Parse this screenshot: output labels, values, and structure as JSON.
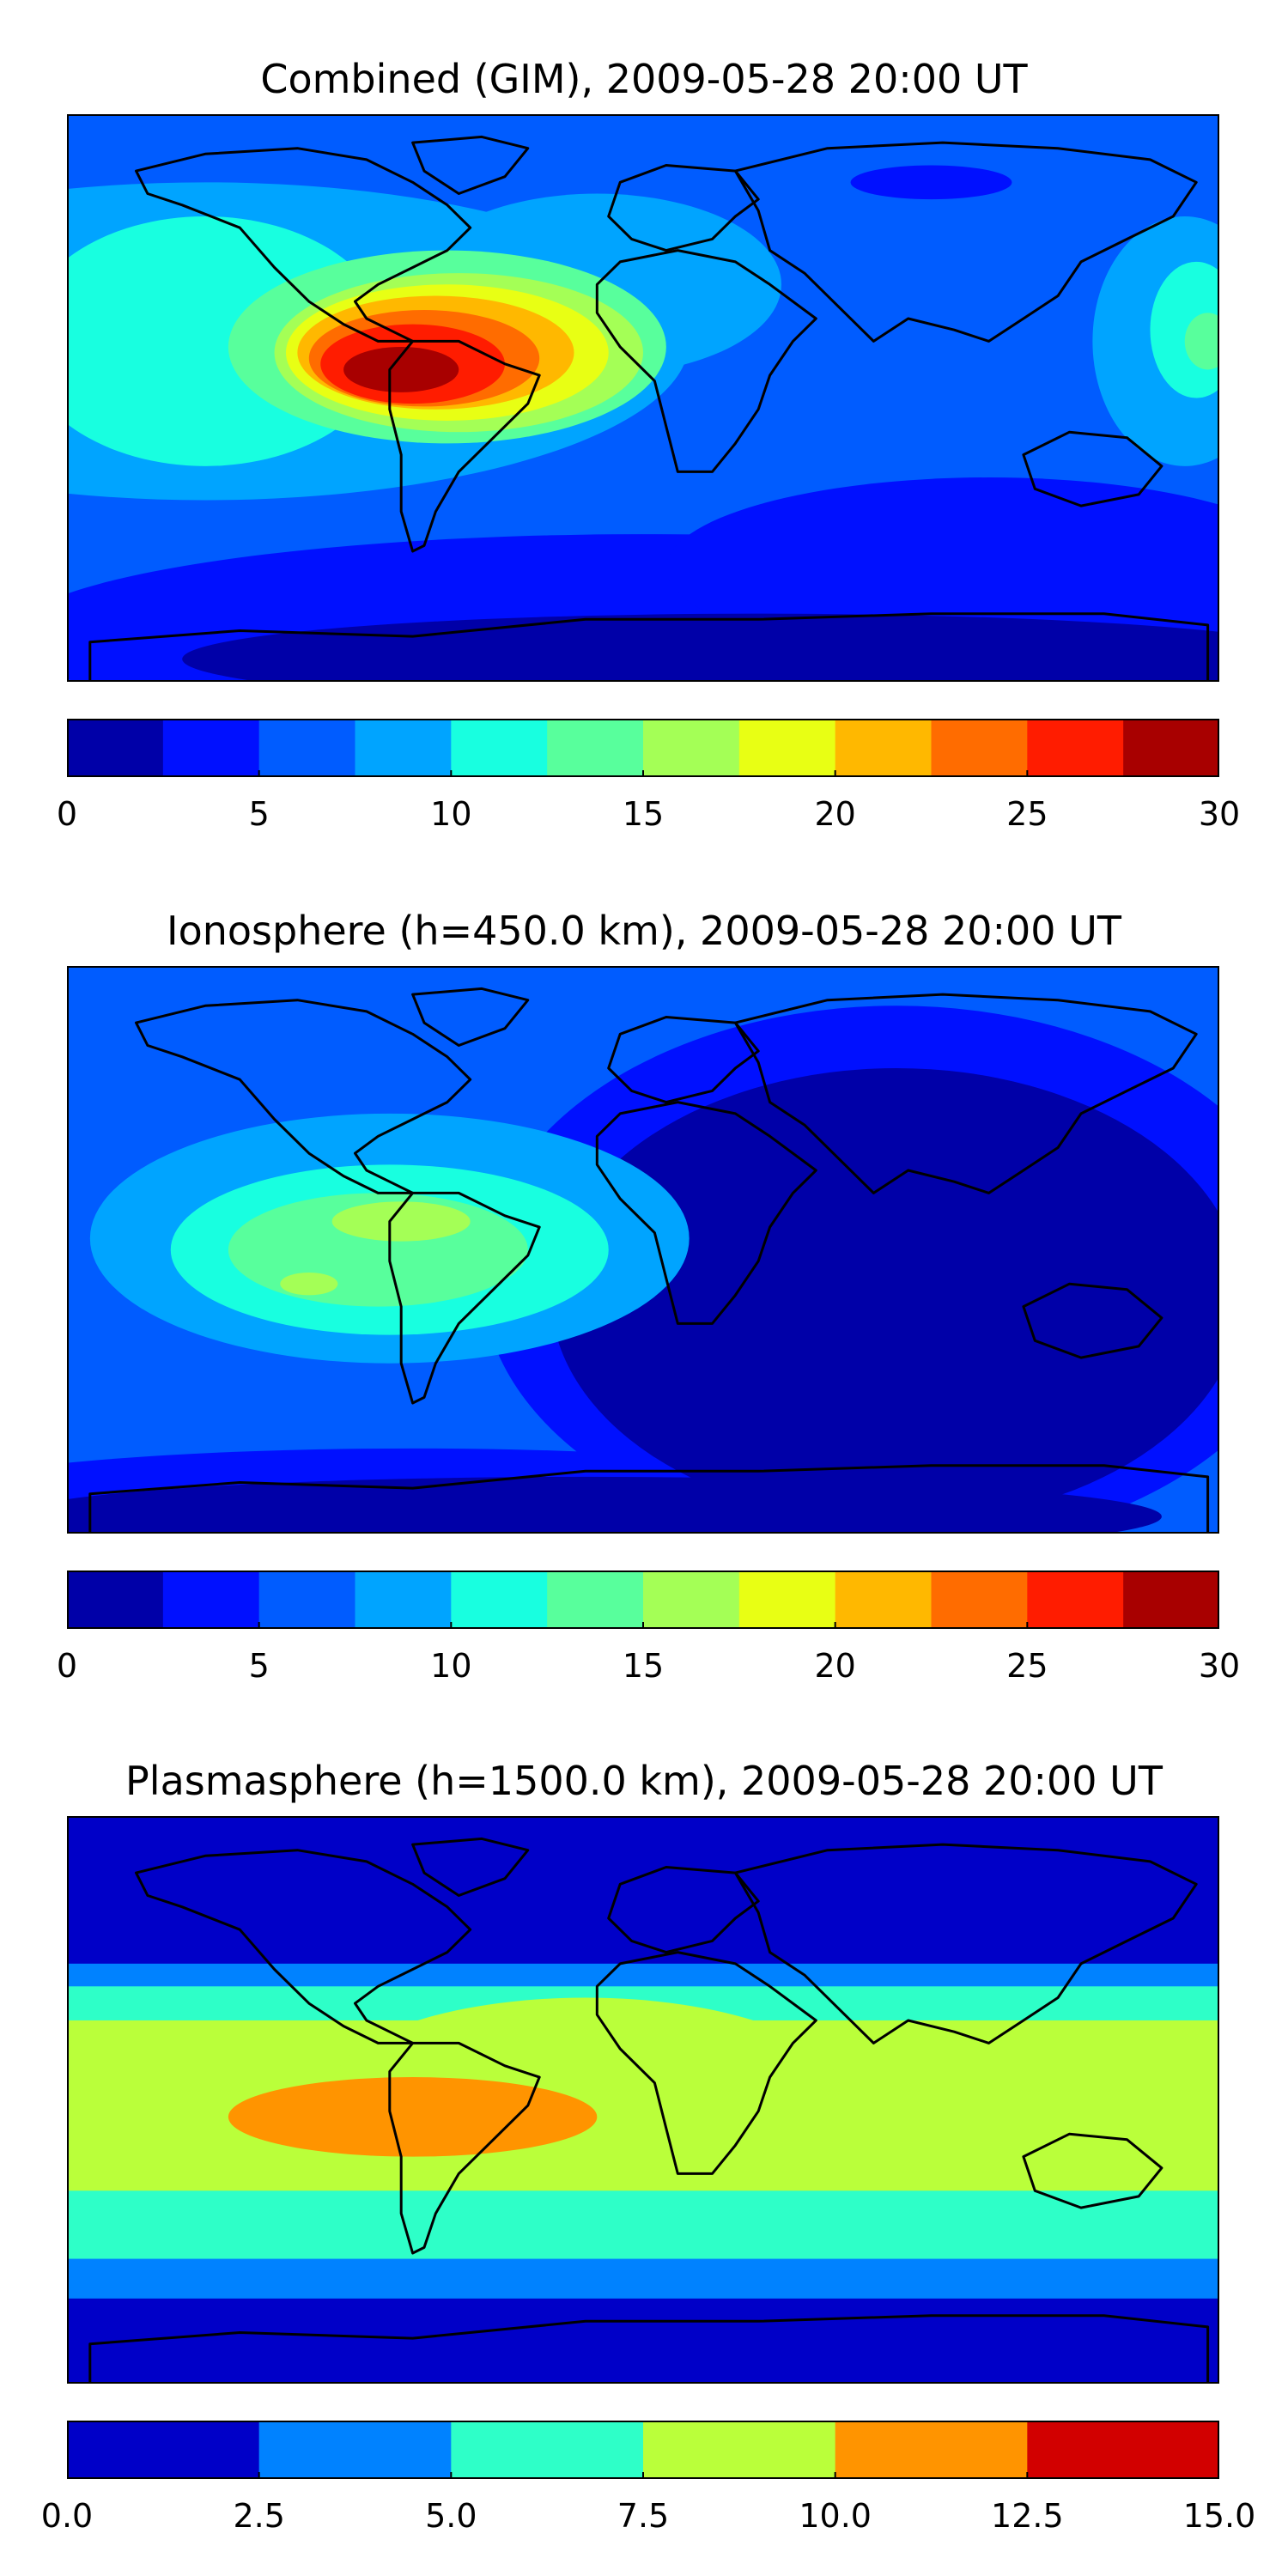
{
  "chart_data": [
    {
      "type": "heatmap",
      "title": "Combined (GIM), 2009-05-28 20:00 UT",
      "xlabel": "",
      "ylabel": "",
      "colorbar": {
        "ticks": [
          "0",
          "5",
          "10",
          "15",
          "20",
          "25",
          "30"
        ],
        "levels": [
          0,
          2.5,
          5,
          7.5,
          10,
          12.5,
          15,
          17.5,
          20,
          22.5,
          25,
          27.5,
          30
        ],
        "colors": [
          "#0000a8",
          "#0010ff",
          "#005cff",
          "#00a4ff",
          "#18ffe0",
          "#58ff9c",
          "#a4ff56",
          "#e8ff14",
          "#ffb800",
          "#ff6c00",
          "#ff1c00",
          "#a80000"
        ]
      },
      "background_level": 2,
      "regions": [
        {
          "level": 3,
          "cx": 0.12,
          "cy": 0.4,
          "rx": 0.42,
          "ry": 0.28
        },
        {
          "level": 3,
          "cx": 0.46,
          "cy": 0.3,
          "rx": 0.16,
          "ry": 0.16
        },
        {
          "level": 3,
          "cx": 0.97,
          "cy": 0.4,
          "rx": 0.08,
          "ry": 0.22
        },
        {
          "level": 4,
          "cx": 0.12,
          "cy": 0.4,
          "rx": 0.16,
          "ry": 0.22
        },
        {
          "level": 4,
          "cx": 0.98,
          "cy": 0.38,
          "rx": 0.04,
          "ry": 0.12
        },
        {
          "level": 5,
          "cx": 0.33,
          "cy": 0.41,
          "rx": 0.19,
          "ry": 0.17
        },
        {
          "level": 5,
          "cx": 0.99,
          "cy": 0.4,
          "rx": 0.02,
          "ry": 0.05
        },
        {
          "level": 6,
          "cx": 0.34,
          "cy": 0.42,
          "rx": 0.16,
          "ry": 0.14
        },
        {
          "level": 7,
          "cx": 0.33,
          "cy": 0.42,
          "rx": 0.14,
          "ry": 0.12
        },
        {
          "level": 8,
          "cx": 0.32,
          "cy": 0.42,
          "rx": 0.12,
          "ry": 0.1
        },
        {
          "level": 9,
          "cx": 0.31,
          "cy": 0.43,
          "rx": 0.1,
          "ry": 0.085
        },
        {
          "level": 10,
          "cx": 0.3,
          "cy": 0.44,
          "rx": 0.08,
          "ry": 0.07
        },
        {
          "level": 11,
          "cx": 0.29,
          "cy": 0.45,
          "rx": 0.05,
          "ry": 0.04
        }
      ],
      "low_regions": [
        {
          "level": 1,
          "cx": 0.5,
          "cy": 0.92,
          "rx": 0.55,
          "ry": 0.18
        },
        {
          "level": 1,
          "cx": 0.8,
          "cy": 0.8,
          "rx": 0.28,
          "ry": 0.16
        },
        {
          "level": 1,
          "cx": 0.75,
          "cy": 0.12,
          "rx": 0.07,
          "ry": 0.03
        },
        {
          "level": 0,
          "cx": 0.6,
          "cy": 0.96,
          "rx": 0.5,
          "ry": 0.08
        }
      ]
    },
    {
      "type": "heatmap",
      "title": "Ionosphere  (h=450.0 km), 2009-05-28 20:00 UT",
      "xlabel": "",
      "ylabel": "",
      "colorbar": {
        "ticks": [
          "0",
          "5",
          "10",
          "15",
          "20",
          "25",
          "30"
        ],
        "levels": [
          0,
          2.5,
          5,
          7.5,
          10,
          12.5,
          15,
          17.5,
          20,
          22.5,
          25,
          27.5,
          30
        ],
        "colors": [
          "#0000a8",
          "#0010ff",
          "#005cff",
          "#00a4ff",
          "#18ffe0",
          "#58ff9c",
          "#a4ff56",
          "#e8ff14",
          "#ffb800",
          "#ff6c00",
          "#ff1c00",
          "#a80000"
        ]
      },
      "background_level": 2,
      "regions": [
        {
          "level": 3,
          "cx": 0.28,
          "cy": 0.48,
          "rx": 0.26,
          "ry": 0.22
        },
        {
          "level": 4,
          "cx": 0.28,
          "cy": 0.5,
          "rx": 0.19,
          "ry": 0.15
        },
        {
          "level": 5,
          "cx": 0.27,
          "cy": 0.5,
          "rx": 0.13,
          "ry": 0.1
        },
        {
          "level": 6,
          "cx": 0.29,
          "cy": 0.45,
          "rx": 0.06,
          "ry": 0.035
        },
        {
          "level": 6,
          "cx": 0.21,
          "cy": 0.56,
          "rx": 0.025,
          "ry": 0.02
        }
      ],
      "low_regions": [
        {
          "level": 1,
          "cx": 0.72,
          "cy": 0.55,
          "rx": 0.36,
          "ry": 0.48
        },
        {
          "level": 1,
          "cx": 0.3,
          "cy": 0.95,
          "rx": 0.45,
          "ry": 0.1
        },
        {
          "level": 0,
          "cx": 0.72,
          "cy": 0.58,
          "rx": 0.3,
          "ry": 0.4
        },
        {
          "level": 0,
          "cx": 0.45,
          "cy": 0.97,
          "rx": 0.5,
          "ry": 0.07
        }
      ]
    },
    {
      "type": "heatmap",
      "title": "Plasmasphere (h=1500.0 km), 2009-05-28 20:00 UT",
      "xlabel": "",
      "ylabel": "",
      "colorbar": {
        "ticks": [
          "0.0",
          "2.5",
          "5.0",
          "7.5",
          "10.0",
          "12.5",
          "15.0"
        ],
        "levels": [
          0,
          2.5,
          5,
          7.5,
          10,
          12.5,
          15
        ],
        "colors": [
          "#0000c8",
          "#0082ff",
          "#2effc8",
          "#baff3a",
          "#ff9400",
          "#d20000"
        ]
      },
      "background_level": 0,
      "bands": [
        {
          "level": 1,
          "y0": 0.26,
          "y1": 0.85
        },
        {
          "level": 2,
          "y0": 0.3,
          "y1": 0.78
        },
        {
          "level": 3,
          "y0": 0.36,
          "y1": 0.66
        }
      ],
      "regions": [
        {
          "level": 3,
          "cx": 0.45,
          "cy": 0.48,
          "rx": 0.22,
          "ry": 0.16
        },
        {
          "level": 4,
          "cx": 0.3,
          "cy": 0.53,
          "rx": 0.16,
          "ry": 0.07
        }
      ],
      "low_regions": []
    }
  ]
}
